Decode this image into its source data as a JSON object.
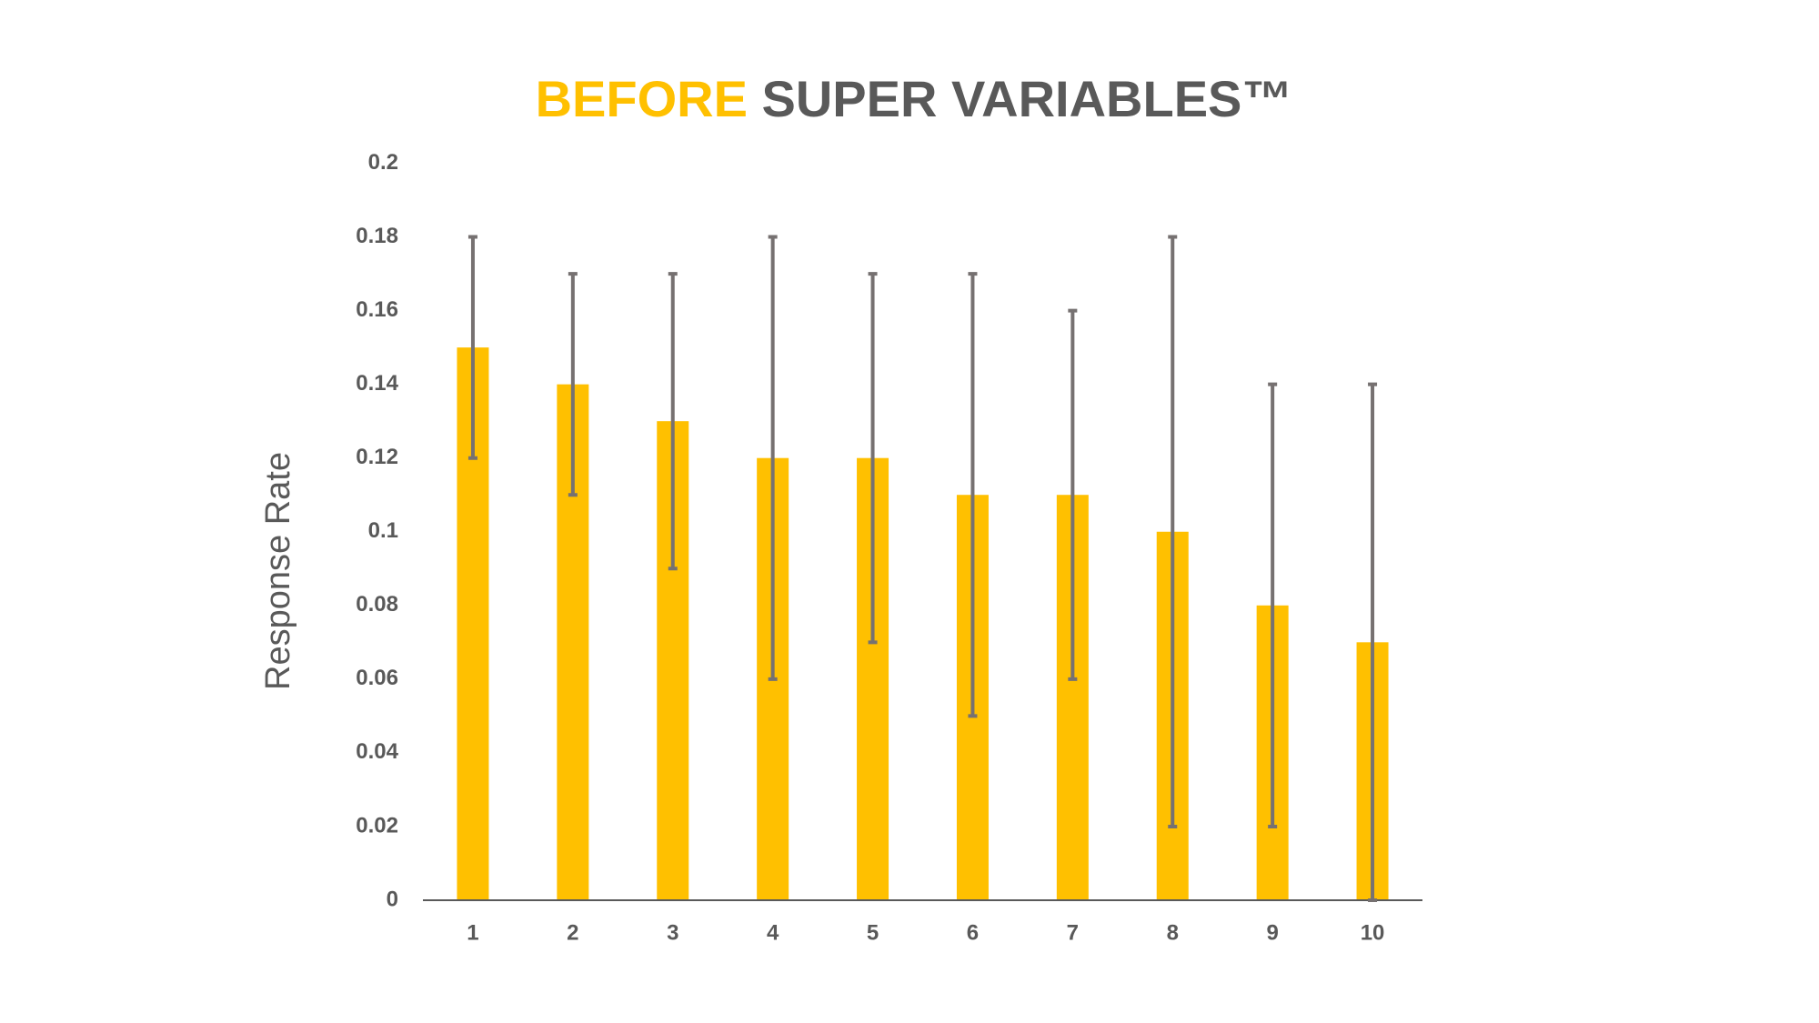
{
  "chart_data": {
    "type": "bar",
    "title_parts": [
      {
        "text": "BEFORE",
        "color": "#ffc000"
      },
      {
        "text": "SUPER VARIABLES™",
        "color": "#595959"
      }
    ],
    "y_label": "Response Rate",
    "categories": [
      "1",
      "2",
      "3",
      "4",
      "5",
      "6",
      "7",
      "8",
      "9",
      "10"
    ],
    "values": [
      0.15,
      0.14,
      0.13,
      0.12,
      0.12,
      0.11,
      0.11,
      0.1,
      0.08,
      0.07
    ],
    "errors": [
      0.03,
      0.03,
      0.04,
      0.06,
      0.05,
      0.06,
      0.05,
      0.08,
      0.06,
      0.07
    ],
    "color": "#ffc000",
    "error_color": "#767171",
    "ylim": [
      0,
      0.2
    ],
    "yticks": [
      0,
      0.02,
      0.04,
      0.06,
      0.08,
      0.1,
      0.12,
      0.14,
      0.16,
      0.18,
      0.2
    ],
    "grid": false
  }
}
